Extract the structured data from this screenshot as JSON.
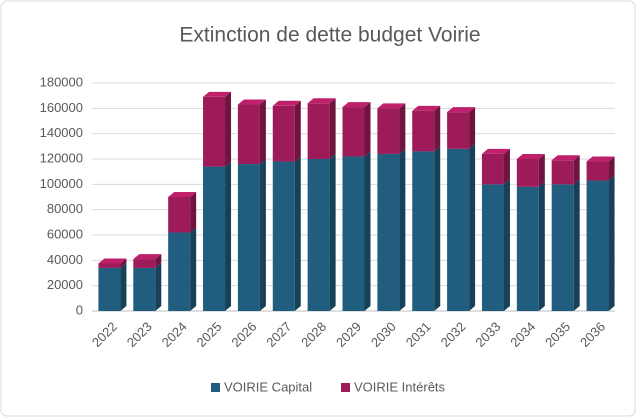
{
  "chart_data": {
    "type": "bar",
    "stacked": true,
    "title": "Extinction de dette budget Voirie",
    "categories": [
      "2022",
      "2023",
      "2024",
      "2025",
      "2026",
      "2027",
      "2028",
      "2029",
      "2030",
      "2031",
      "2032",
      "2033",
      "2034",
      "2035",
      "2036"
    ],
    "series": [
      {
        "name": "VOIRIE Capital",
        "color": "#215d7e",
        "values": [
          34000,
          34000,
          62000,
          114000,
          116000,
          118000,
          120000,
          122000,
          124000,
          126000,
          128000,
          100000,
          98000,
          100000,
          103000
        ]
      },
      {
        "name": "VOIRIE Intérêts",
        "color": "#9e1b5a",
        "values": [
          3500,
          7000,
          28000,
          55000,
          47000,
          44000,
          44000,
          39000,
          36000,
          32000,
          29000,
          24000,
          22000,
          19000,
          15000
        ]
      }
    ],
    "ylim": [
      0,
      180000
    ],
    "yticks": [
      0,
      20000,
      40000,
      60000,
      80000,
      100000,
      120000,
      140000,
      160000,
      180000
    ],
    "grid": true,
    "legend": "bottom"
  }
}
